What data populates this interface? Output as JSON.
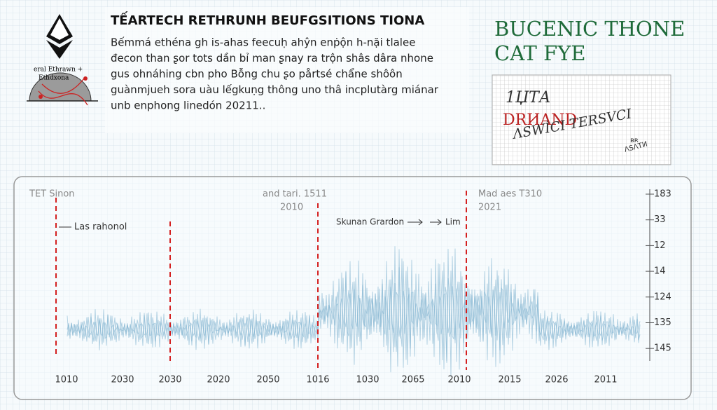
{
  "header": {
    "title": "TẾARTECH RETHRUNH BEUFGSITIONS TIONA",
    "paragraph": [
      "Bếmmá ethéna gh is-ahas feecuḥ ahŷn enṗộn h-nặi tlalee",
      "đecon than ʂor tots dần bỉ man ʂnay ra trộn shâs dâra nhone",
      "gus ohnáhing cbn pho Bỗng chu ʂo pårtsé chẩne shôôn",
      "guànmjueh sora uàu lếgkuṇg thông uno thâ incplutàrg miánar",
      "unb enphong linedón 20211.."
    ]
  },
  "logo": {
    "caption": [
      "eral Ethrawn +",
      "Ethdxona"
    ]
  },
  "side": {
    "heading": [
      "BUCENIC THONE",
      "CAT FYE"
    ],
    "note": [
      "1ЏТА",
      "DRИAND",
      "ΛSWİCI TERSVCI",
      "ʙʀ",
      "ΛSΛTИ"
    ]
  },
  "panel": {
    "labels": {
      "top_left": "TET Sinon",
      "top_mid": [
        "and tari. 1511",
        "2010"
      ],
      "top_right": [
        "Mad aes T310",
        "2021"
      ],
      "left_note": "Las rahonol",
      "mid_note": "Skunan Grardon",
      "mid_note_2": "Lim"
    },
    "right_labels": [
      "183",
      "33",
      "12",
      "14",
      "124",
      "135",
      "145"
    ],
    "bottom_labels": [
      "1010",
      "2030",
      "2030",
      "2020",
      "2050",
      "1016",
      "1030",
      "2065",
      "2010",
      "2015",
      "2026",
      "2011"
    ]
  }
}
